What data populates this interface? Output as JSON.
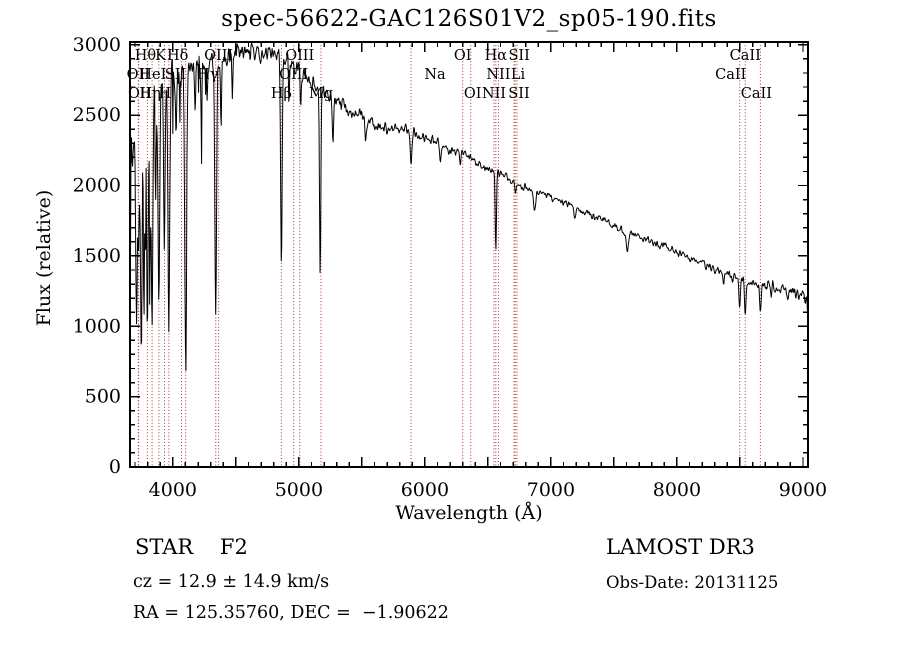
{
  "title": "spec-56622-GAC126S01V2_sp05-190.fits",
  "footer": {
    "class_line": "STAR    F2",
    "cz_line": "cz = 12.9 ± 14.9 km/s",
    "radec_line": "RA = 125.35760, DEC =  −1.90622",
    "survey": "LAMOST DR3",
    "obs_date": "Obs-Date: 20131125"
  },
  "chart_data": {
    "type": "line",
    "title": "spec-56622-GAC126S01V2_sp05-190.fits",
    "xlabel": "Wavelength (Å)",
    "ylabel": "Flux (relative)",
    "xlim": [
      3660,
      9040
    ],
    "ylim": [
      0,
      3000
    ],
    "x_major_tick_step": 500,
    "x_minor_tick_step": 100,
    "x_label_ticks": [
      4000,
      5000,
      6000,
      7000,
      8000,
      9000
    ],
    "y_major_tick_step": 500,
    "y_minor_tick_step": 100,
    "y_label_ticks": [
      0,
      500,
      1000,
      1500,
      2000,
      2500,
      3000
    ],
    "grid": false,
    "line_color": "#000000",
    "marker_line_color": "#a03028",
    "spectral_lines": [
      {
        "label": "Hθ",
        "wl": 3797.9,
        "row": 1,
        "dx": -2
      },
      {
        "label": "K",
        "wl": 3933.7,
        "row": 1,
        "dx": -4
      },
      {
        "label": "Hδ",
        "wl": 4101.8,
        "row": 1,
        "dx": -8
      },
      {
        "label": "OIII",
        "wl": 4363.2,
        "row": 1,
        "dx": 0
      },
      {
        "label": "OIII",
        "wl": 5006.8,
        "row": 1,
        "dx": 0
      },
      {
        "label": "OI",
        "wl": 6300.3,
        "row": 1,
        "dx": 0
      },
      {
        "label": "Hα",
        "wl": 6562.8,
        "row": 1,
        "dx": 0
      },
      {
        "label": "SII",
        "wl": 6716.4,
        "row": 1,
        "dx": 4
      },
      {
        "label": "CaII",
        "wl": 8542.1,
        "row": 1,
        "dx": 0
      },
      {
        "label": "OII",
        "wl": 3726.0,
        "row": 2,
        "dx": 0
      },
      {
        "label": "HeI",
        "wl": 3889.1,
        "row": 2,
        "dx": -6
      },
      {
        "label": "SII",
        "wl": 4068.6,
        "row": 2,
        "dx": -6
      },
      {
        "label": "Hγ",
        "wl": 4340.5,
        "row": 2,
        "dx": -8
      },
      {
        "label": "OIII",
        "wl": 4958.9,
        "row": 2,
        "dx": 0
      },
      {
        "label": "Na",
        "wl": 5890.0,
        "row": 2,
        "dx": 24
      },
      {
        "label": "NII",
        "wl": 6583.5,
        "row": 2,
        "dx": 0
      },
      {
        "label": "Li",
        "wl": 6707.4,
        "row": 2,
        "dx": 4
      },
      {
        "label": "CaII",
        "wl": 8498.0,
        "row": 2,
        "dx": -9
      },
      {
        "label": "OII",
        "wl": 3728.8,
        "row": 3,
        "dx": 1
      },
      {
        "label": "Hη",
        "wl": 3835.4,
        "row": 3,
        "dx": -2
      },
      {
        "label": "H",
        "wl": 3968.5,
        "row": 3,
        "dx": -4
      },
      {
        "label": "Hβ",
        "wl": 4861.3,
        "row": 3,
        "dx": 0
      },
      {
        "label": "Mg",
        "wl": 5175.3,
        "row": 3,
        "dx": 0
      },
      {
        "label": "OI",
        "wl": 6363.8,
        "row": 3,
        "dx": 2
      },
      {
        "label": "NII",
        "wl": 6548.1,
        "row": 3,
        "dx": 0
      },
      {
        "label": "SII",
        "wl": 6730.8,
        "row": 3,
        "dx": 2
      },
      {
        "label": "CaII",
        "wl": 8662.1,
        "row": 3,
        "dx": -4
      }
    ],
    "continuum": [
      [
        3660,
        2150
      ],
      [
        3700,
        2280
      ],
      [
        3750,
        2420
      ],
      [
        3800,
        2520
      ],
      [
        3850,
        2600
      ],
      [
        3900,
        2680
      ],
      [
        3950,
        2730
      ],
      [
        4000,
        2780
      ],
      [
        4100,
        2830
      ],
      [
        4200,
        2860
      ],
      [
        4300,
        2890
      ],
      [
        4400,
        2910
      ],
      [
        4500,
        2930
      ],
      [
        4600,
        2945
      ],
      [
        4700,
        2950
      ],
      [
        4800,
        2940
      ],
      [
        4900,
        2905
      ],
      [
        5000,
        2830
      ],
      [
        5100,
        2740
      ],
      [
        5200,
        2660
      ],
      [
        5300,
        2590
      ],
      [
        5400,
        2540
      ],
      [
        5500,
        2490
      ],
      [
        5600,
        2430
      ],
      [
        5700,
        2400
      ],
      [
        5800,
        2400
      ],
      [
        5900,
        2390
      ],
      [
        6000,
        2340
      ],
      [
        6100,
        2300
      ],
      [
        6200,
        2260
      ],
      [
        6300,
        2220
      ],
      [
        6400,
        2170
      ],
      [
        6500,
        2120
      ],
      [
        6600,
        2080
      ],
      [
        6700,
        2020
      ],
      [
        6800,
        1990
      ],
      [
        6900,
        1950
      ],
      [
        7000,
        1920
      ],
      [
        7100,
        1880
      ],
      [
        7200,
        1840
      ],
      [
        7300,
        1800
      ],
      [
        7400,
        1760
      ],
      [
        7500,
        1720
      ],
      [
        7600,
        1680
      ],
      [
        7700,
        1640
      ],
      [
        7800,
        1600
      ],
      [
        7900,
        1570
      ],
      [
        8000,
        1530
      ],
      [
        8100,
        1490
      ],
      [
        8200,
        1450
      ],
      [
        8300,
        1410
      ],
      [
        8400,
        1370
      ],
      [
        8500,
        1330
      ],
      [
        8600,
        1300
      ],
      [
        8700,
        1290
      ],
      [
        8750,
        1300
      ],
      [
        8800,
        1280
      ],
      [
        8900,
        1250
      ],
      [
        8950,
        1230
      ],
      [
        9000,
        1220
      ],
      [
        9040,
        1190
      ]
    ],
    "absorption_lines": [
      [
        3712,
        0.5,
        6
      ],
      [
        3727,
        0.45,
        5
      ],
      [
        3750,
        0.62,
        6
      ],
      [
        3771,
        0.5,
        5
      ],
      [
        3798,
        0.58,
        6
      ],
      [
        3820,
        0.3,
        4
      ],
      [
        3835,
        0.6,
        6
      ],
      [
        3862,
        0.25,
        4
      ],
      [
        3889,
        0.52,
        6
      ],
      [
        3933,
        0.42,
        5
      ],
      [
        3968,
        0.65,
        7
      ],
      [
        4026,
        0.18,
        4
      ],
      [
        4101,
        0.7,
        7
      ],
      [
        4178,
        0.12,
        4
      ],
      [
        4227,
        0.14,
        4
      ],
      [
        4272,
        0.1,
        4
      ],
      [
        4340,
        0.63,
        7
      ],
      [
        4383,
        0.18,
        4
      ],
      [
        4472,
        0.1,
        4
      ],
      [
        4861,
        0.5,
        6
      ],
      [
        4921,
        0.12,
        4
      ],
      [
        5015,
        0.1,
        4
      ],
      [
        5169,
        0.5,
        5
      ],
      [
        5270,
        0.12,
        5
      ],
      [
        5530,
        0.06,
        5
      ],
      [
        5890,
        0.1,
        7
      ],
      [
        6122,
        0.04,
        5
      ],
      [
        6280,
        0.04,
        5
      ],
      [
        6563,
        0.27,
        5
      ],
      [
        6717,
        0.04,
        5
      ],
      [
        6870,
        0.07,
        9
      ],
      [
        7190,
        0.04,
        8
      ],
      [
        7605,
        0.08,
        9
      ],
      [
        8230,
        0.04,
        7
      ],
      [
        8370,
        0.05,
        5
      ],
      [
        8440,
        0.05,
        5
      ],
      [
        8498,
        0.13,
        6
      ],
      [
        8542,
        0.17,
        6
      ],
      [
        8662,
        0.13,
        6
      ],
      [
        8750,
        0.05,
        5
      ],
      [
        8880,
        0.05,
        6
      ]
    ],
    "noise_sigma": [
      [
        3660,
        500
      ],
      [
        3700,
        420
      ],
      [
        3760,
        330
      ],
      [
        3820,
        260
      ],
      [
        3880,
        210
      ],
      [
        3940,
        170
      ],
      [
        4000,
        140
      ],
      [
        4100,
        120
      ],
      [
        4250,
        100
      ],
      [
        4400,
        90
      ],
      [
        4600,
        85
      ],
      [
        4800,
        80
      ],
      [
        5000,
        70
      ],
      [
        5200,
        60
      ],
      [
        5400,
        55
      ],
      [
        5600,
        50
      ],
      [
        5900,
        45
      ],
      [
        6200,
        40
      ],
      [
        6500,
        35
      ],
      [
        6800,
        32
      ],
      [
        7200,
        30
      ],
      [
        7600,
        30
      ],
      [
        8000,
        32
      ],
      [
        8400,
        36
      ],
      [
        8700,
        40
      ],
      [
        9040,
        45
      ]
    ],
    "edges": {
      "left_start_flux": 340,
      "right_end_flux": 40
    }
  }
}
